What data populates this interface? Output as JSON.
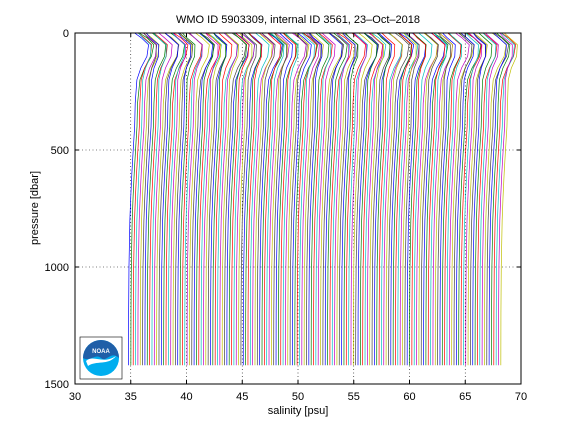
{
  "chart_data": {
    "type": "line",
    "title": "WMO ID 5903309, internal ID 3561, 23–Oct–2018",
    "xlabel": "salinity [psu]",
    "ylabel": "pressure [dbar]",
    "xlim": [
      30,
      70
    ],
    "ylim": [
      0,
      1500
    ],
    "y_reversed": true,
    "xticks": [
      30,
      35,
      40,
      45,
      50,
      55,
      60,
      65,
      70
    ],
    "xtick_labels": [
      "30",
      "35",
      "40",
      "45",
      "50",
      "55",
      "60",
      "65",
      "70"
    ],
    "yticks": [
      0,
      500,
      1000,
      1500
    ],
    "ytick_labels": [
      "0",
      "500",
      "1000",
      "1500"
    ],
    "grid": "dotted",
    "series_count": 160,
    "series_offset_psu": 0.21,
    "first_profile_deep_salinity": 34.8,
    "profile_max_pressure": 1420,
    "series_colors": [
      "#0000ff",
      "#008000",
      "#ff0000",
      "#00bfbf",
      "#bf00bf",
      "#bfbf00",
      "#404040"
    ],
    "profile_shape": {
      "pressure": [
        0,
        20,
        50,
        100,
        150,
        200,
        300,
        400,
        500,
        600,
        700,
        800,
        1000,
        1200,
        1420
      ],
      "salinity_anomaly": [
        0.4,
        0.9,
        1.6,
        1.5,
        1.0,
        0.7,
        0.6,
        0.55,
        0.42,
        0.3,
        0.2,
        0.12,
        0.04,
        0.01,
        0.0
      ]
    }
  },
  "logo": {
    "text": "NOAA",
    "colors": {
      "sky": "#1f5fa8",
      "water": "#00aeef",
      "bird": "#ffffff"
    }
  }
}
